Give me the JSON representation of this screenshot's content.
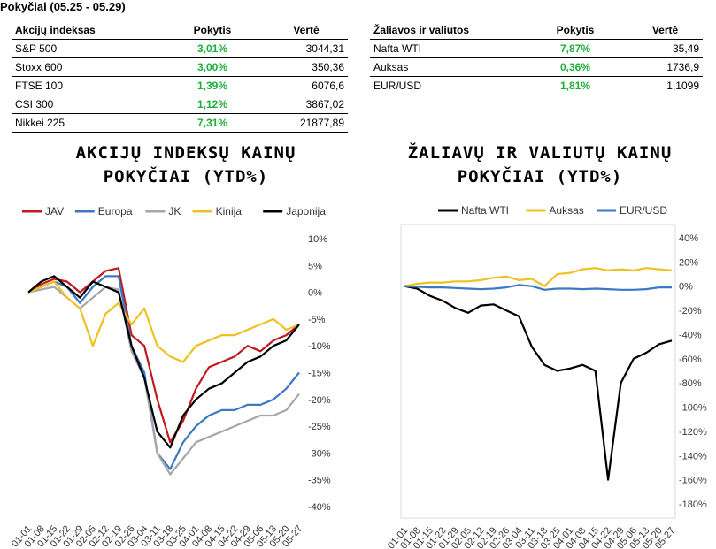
{
  "header": {
    "title": "Pokyčiai (05.25 - 05.29)"
  },
  "table_left": {
    "columns": [
      "Akcijų indeksas",
      "Pokytis",
      "Vertė"
    ],
    "rows": [
      {
        "name": "S&P 500",
        "change": "3,01%",
        "value": "3044,31"
      },
      {
        "name": "Stoxx 600",
        "change": "3,00%",
        "value": "350,36"
      },
      {
        "name": "FTSE 100",
        "change": "1,39%",
        "value": "6076,6"
      },
      {
        "name": "CSI 300",
        "change": "1,12%",
        "value": "3867,02"
      },
      {
        "name": "Nikkei 225",
        "change": "7,31%",
        "value": "21877,89"
      }
    ]
  },
  "table_right": {
    "columns": [
      "Žaliavos ir valiutos",
      "Pokytis",
      "Vertė"
    ],
    "rows": [
      {
        "name": "Nafta WTI",
        "change": "7,87%",
        "value": "35,49"
      },
      {
        "name": "Auksas",
        "change": "0,36%",
        "value": "1736,9"
      },
      {
        "name": "EUR/USD",
        "change": "1,81%",
        "value": "1,1099"
      }
    ]
  },
  "colors": {
    "JAV": "#c0191e",
    "Europa": "#3c78c4",
    "JK": "#a6a6a6",
    "Kinija": "#f0c020",
    "Japonija": "#000000",
    "Nafta WTI": "#000000",
    "Auksas": "#f0c020",
    "EUR/USD": "#3c78c4",
    "positive": "#1fae3b"
  },
  "chart_data": [
    {
      "type": "line",
      "title_lines": [
        "AKCIJŲ INDEKSŲ KAINŲ",
        "POKYČIAI (YTD%)"
      ],
      "xlabel": "",
      "ylabel": "",
      "x_ticks": [
        "01-01",
        "01-08",
        "01-15",
        "01-22",
        "01-29",
        "02-05",
        "02-12",
        "02-19",
        "02-26",
        "03-04",
        "03-11",
        "03-18",
        "03-25",
        "04-01",
        "04-08",
        "04-15",
        "04-22",
        "04-29",
        "05-06",
        "05-13",
        "05-20",
        "05-27"
      ],
      "y_ticks": [
        "10%",
        "5%",
        "0%",
        "-5%",
        "-10%",
        "-15%",
        "-20%",
        "-25%",
        "-30%",
        "-35%",
        "-40%"
      ],
      "ylim": [
        -40,
        10
      ],
      "y_axis_side": "right",
      "grid": false,
      "legend_position": "top",
      "series": [
        {
          "name": "JAV",
          "values": [
            0,
            1.5,
            2.5,
            2,
            0,
            2,
            4,
            4.5,
            -8,
            -10,
            -20,
            -28,
            -24,
            -18,
            -14,
            -13,
            -12,
            -10,
            -11,
            -9,
            -8,
            -6
          ]
        },
        {
          "name": "Europa",
          "values": [
            0,
            1,
            2,
            1,
            -2,
            1,
            3,
            3,
            -10,
            -15,
            -30,
            -33,
            -28,
            -25,
            -23,
            -22,
            -22,
            -21,
            -21,
            -20,
            -18,
            -15
          ]
        },
        {
          "name": "JK",
          "values": [
            0,
            0.5,
            1,
            -1,
            -3,
            -1,
            1,
            0.5,
            -11,
            -16,
            -30,
            -34,
            -31,
            -28,
            -27,
            -26,
            -25,
            -24,
            -23,
            -23,
            -22,
            -19
          ]
        },
        {
          "name": "Kinija",
          "values": [
            0,
            1,
            2,
            -1,
            -3,
            -10,
            -4,
            -2,
            -6,
            -3,
            -10,
            -12,
            -13,
            -10,
            -9,
            -8,
            -8,
            -7,
            -6,
            -5,
            -7,
            -6
          ]
        },
        {
          "name": "Japonija",
          "values": [
            0,
            2,
            3,
            1,
            -1,
            2,
            1,
            0,
            -10,
            -16,
            -26,
            -29,
            -23,
            -20,
            -18,
            -17,
            -15,
            -13,
            -12,
            -10,
            -9,
            -6
          ]
        }
      ]
    },
    {
      "type": "line",
      "title_lines": [
        "ŽALIAVŲ IR VALIUTŲ KAINŲ",
        "POKYČIAI (YTD%)"
      ],
      "xlabel": "",
      "ylabel": "",
      "x_ticks": [
        "01-01",
        "01-08",
        "01-15",
        "01-22",
        "01-29",
        "02-05",
        "02-12",
        "02-19",
        "02-26",
        "03-04",
        "03-11",
        "03-18",
        "03-25",
        "04-01",
        "04-08",
        "04-15",
        "04-22",
        "04-29",
        "05-06",
        "05-13",
        "05-20",
        "05-27"
      ],
      "y_ticks": [
        "40%",
        "20%",
        "0%",
        "-20%",
        "-40%",
        "-60%",
        "-80%",
        "-100%",
        "-120%",
        "-140%",
        "-160%",
        "-180%"
      ],
      "ylim": [
        -180,
        40
      ],
      "y_axis_side": "right",
      "grid": false,
      "legend_position": "top",
      "series": [
        {
          "name": "Nafta WTI",
          "values": [
            0,
            -2,
            -8,
            -12,
            -18,
            -22,
            -16,
            -15,
            -20,
            -25,
            -50,
            -65,
            -70,
            -68,
            -65,
            -70,
            -160,
            -80,
            -60,
            -55,
            -48,
            -45
          ]
        },
        {
          "name": "Auksas",
          "values": [
            0,
            2,
            3,
            3,
            4,
            4,
            5,
            7,
            8,
            5,
            6,
            0,
            10,
            11,
            14,
            15,
            13,
            14,
            13,
            15,
            14,
            13
          ]
        },
        {
          "name": "EUR/USD",
          "values": [
            0,
            -0.5,
            -1,
            -1,
            -1.5,
            -2,
            -2.5,
            -2,
            -1,
            1,
            0,
            -3,
            -2,
            -2,
            -2.5,
            -2,
            -2.5,
            -3,
            -3,
            -2.5,
            -1,
            -1
          ]
        }
      ]
    }
  ]
}
